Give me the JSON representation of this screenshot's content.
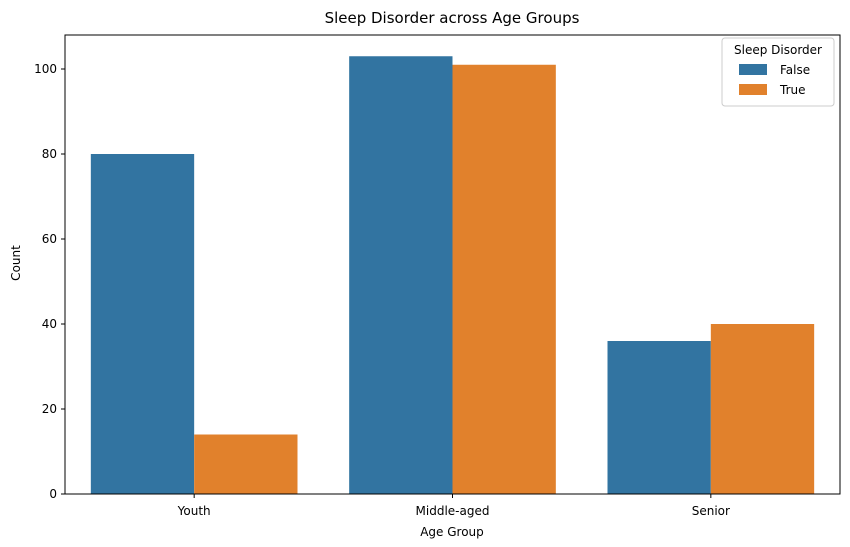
{
  "chart_data": {
    "type": "bar",
    "title": "Sleep Disorder across Age Groups",
    "xlabel": "Age Group",
    "ylabel": "Count",
    "categories": [
      "Youth",
      "Middle-aged",
      "Senior"
    ],
    "series": [
      {
        "name": "False",
        "values": [
          80,
          103,
          36
        ],
        "color": "#3274a1"
      },
      {
        "name": "True",
        "values": [
          14,
          101,
          40
        ],
        "color": "#e1812c"
      }
    ],
    "ylim": [
      0,
      108
    ],
    "yticks": [
      "0",
      "20",
      "40",
      "60",
      "80",
      "100"
    ],
    "grid": false,
    "legend": {
      "title": "Sleep Disorder",
      "placement": "top-right"
    }
  }
}
